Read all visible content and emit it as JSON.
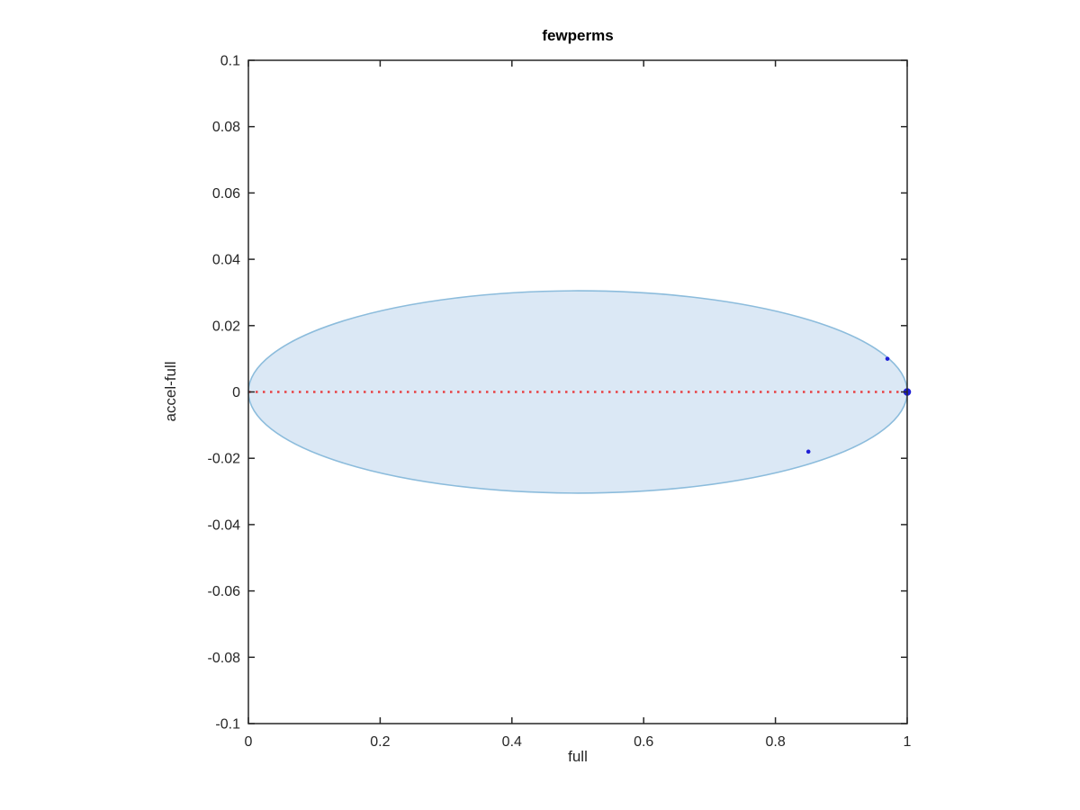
{
  "chart_data": {
    "type": "scatter",
    "title": "fewperms",
    "xlabel": "full",
    "ylabel": "accel-full",
    "xlim": [
      0,
      1
    ],
    "ylim": [
      -0.1,
      0.1
    ],
    "xticks": [
      0,
      0.2,
      0.4,
      0.6,
      0.8,
      1
    ],
    "xtick_labels": [
      "0",
      "0.2",
      "0.4",
      "0.6",
      "0.8",
      "1"
    ],
    "yticks": [
      0.1,
      0.08,
      0.06,
      0.04,
      0.02,
      0,
      -0.02,
      -0.04,
      -0.06,
      -0.08,
      -0.1
    ],
    "ytick_labels": [
      "0.1",
      "0.08",
      "0.06",
      "0.04",
      "0.02",
      "0",
      "-0.02",
      "-0.04",
      "-0.06",
      "-0.08",
      "-0.1"
    ],
    "grid": false,
    "legend": null,
    "box": true,
    "axis_color": "#262626",
    "ellipse": {
      "cx": 0.5,
      "cy": 0,
      "rx": 0.5,
      "ry": 0.0305,
      "fill": "#dbe8f5",
      "stroke": "#8cbcdc",
      "stroke_width": 1.6
    },
    "zero_line": {
      "y": 0,
      "x_start": 0,
      "x_end": 1,
      "color": "#e84043",
      "style": "dotted",
      "dot_size": 2.5,
      "gap": 5.5
    },
    "series": [
      {
        "name": "points",
        "color": "#1f1fd6",
        "points": [
          {
            "x": 0.97,
            "y": 0.01,
            "r": 2.3
          },
          {
            "x": 0.85,
            "y": -0.018,
            "r": 2.3
          },
          {
            "x": 1.0,
            "y": 0.0,
            "r": 4.3
          }
        ]
      }
    ]
  }
}
